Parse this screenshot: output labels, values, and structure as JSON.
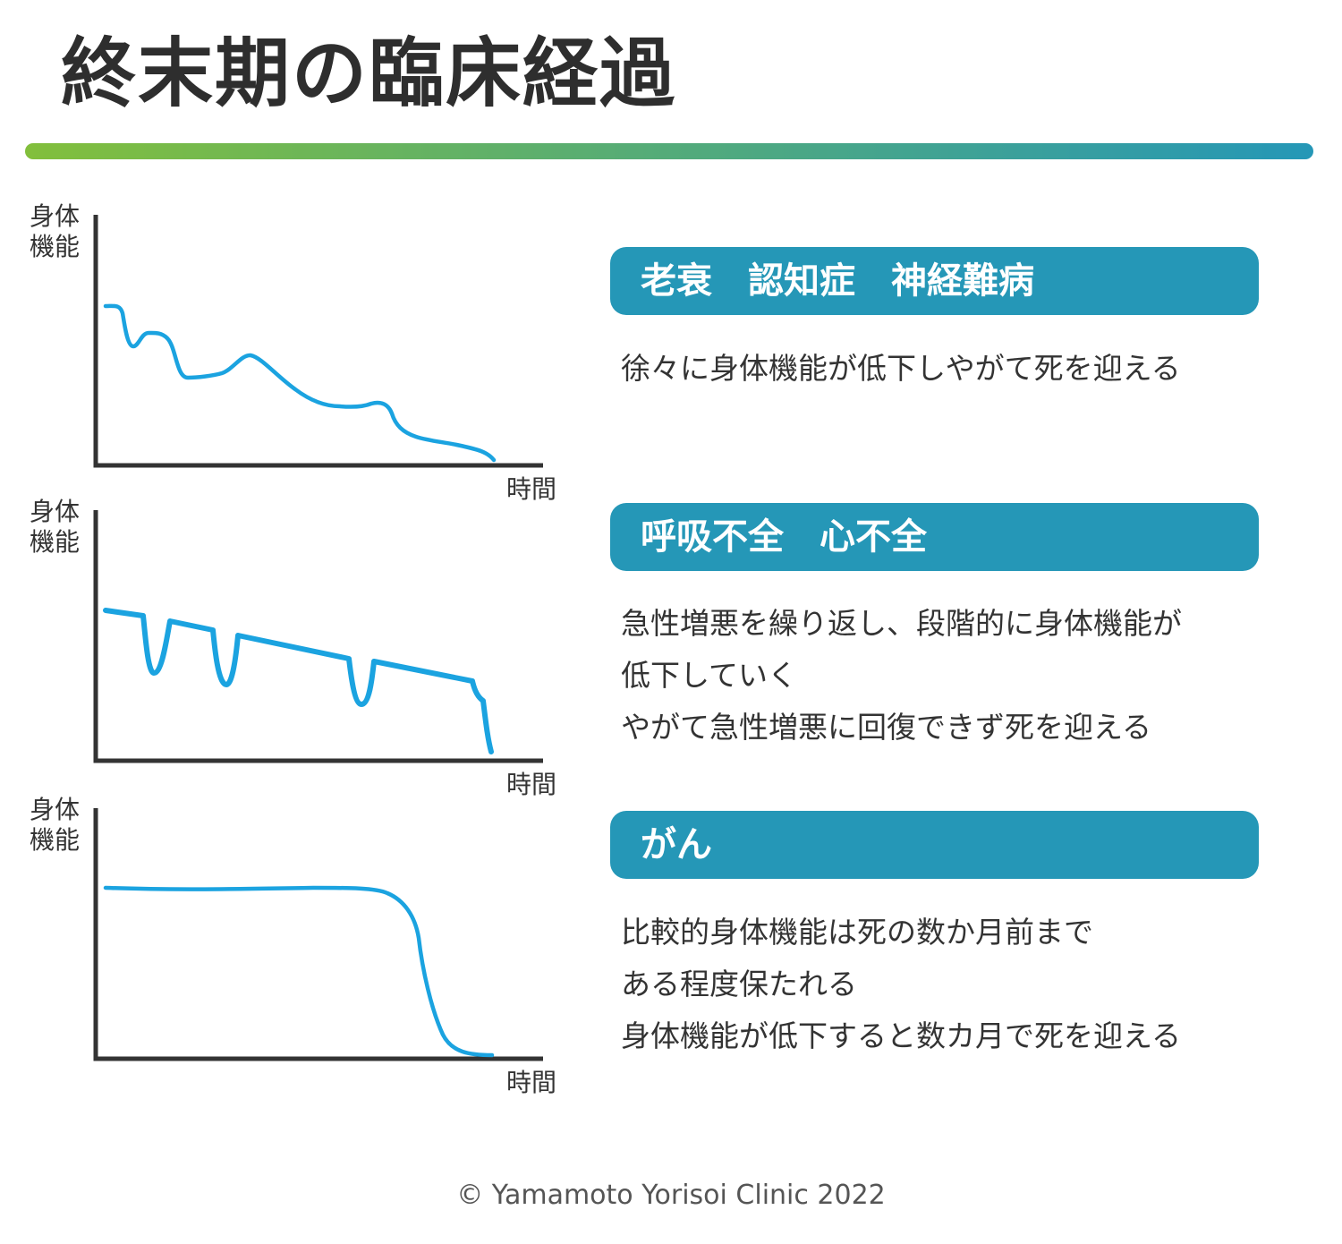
{
  "title": "終末期の臨床経過",
  "colors": {
    "accent": "#2597b7",
    "curve": "#1ba3e0",
    "gradient_start": "#82bf3c",
    "gradient_end": "#2597b7",
    "axis": "#333333"
  },
  "charts": [
    {
      "ylabel_line1": "身体",
      "ylabel_line2": "機能",
      "xlabel": "時間",
      "category": "老衰　認知症　神経難病",
      "description": [
        "徐々に身体機能が低下しやがて死を迎える"
      ]
    },
    {
      "ylabel_line1": "身体",
      "ylabel_line2": "機能",
      "xlabel": "時間",
      "category": "呼吸不全　心不全",
      "description": [
        "急性増悪を繰り返し、段階的に身体機能が",
        "低下していく",
        "やがて急性増悪に回復できず死を迎える"
      ]
    },
    {
      "ylabel_line1": "身体",
      "ylabel_line2": "機能",
      "xlabel": "時間",
      "category": "がん",
      "description": [
        "比較的身体機能は死の数か月前まで",
        "ある程度保たれる",
        "身体機能が低下すると数カ月で死を迎える"
      ]
    }
  ],
  "footer": "© Yamamoto Yorisoi Clinic 2022"
}
